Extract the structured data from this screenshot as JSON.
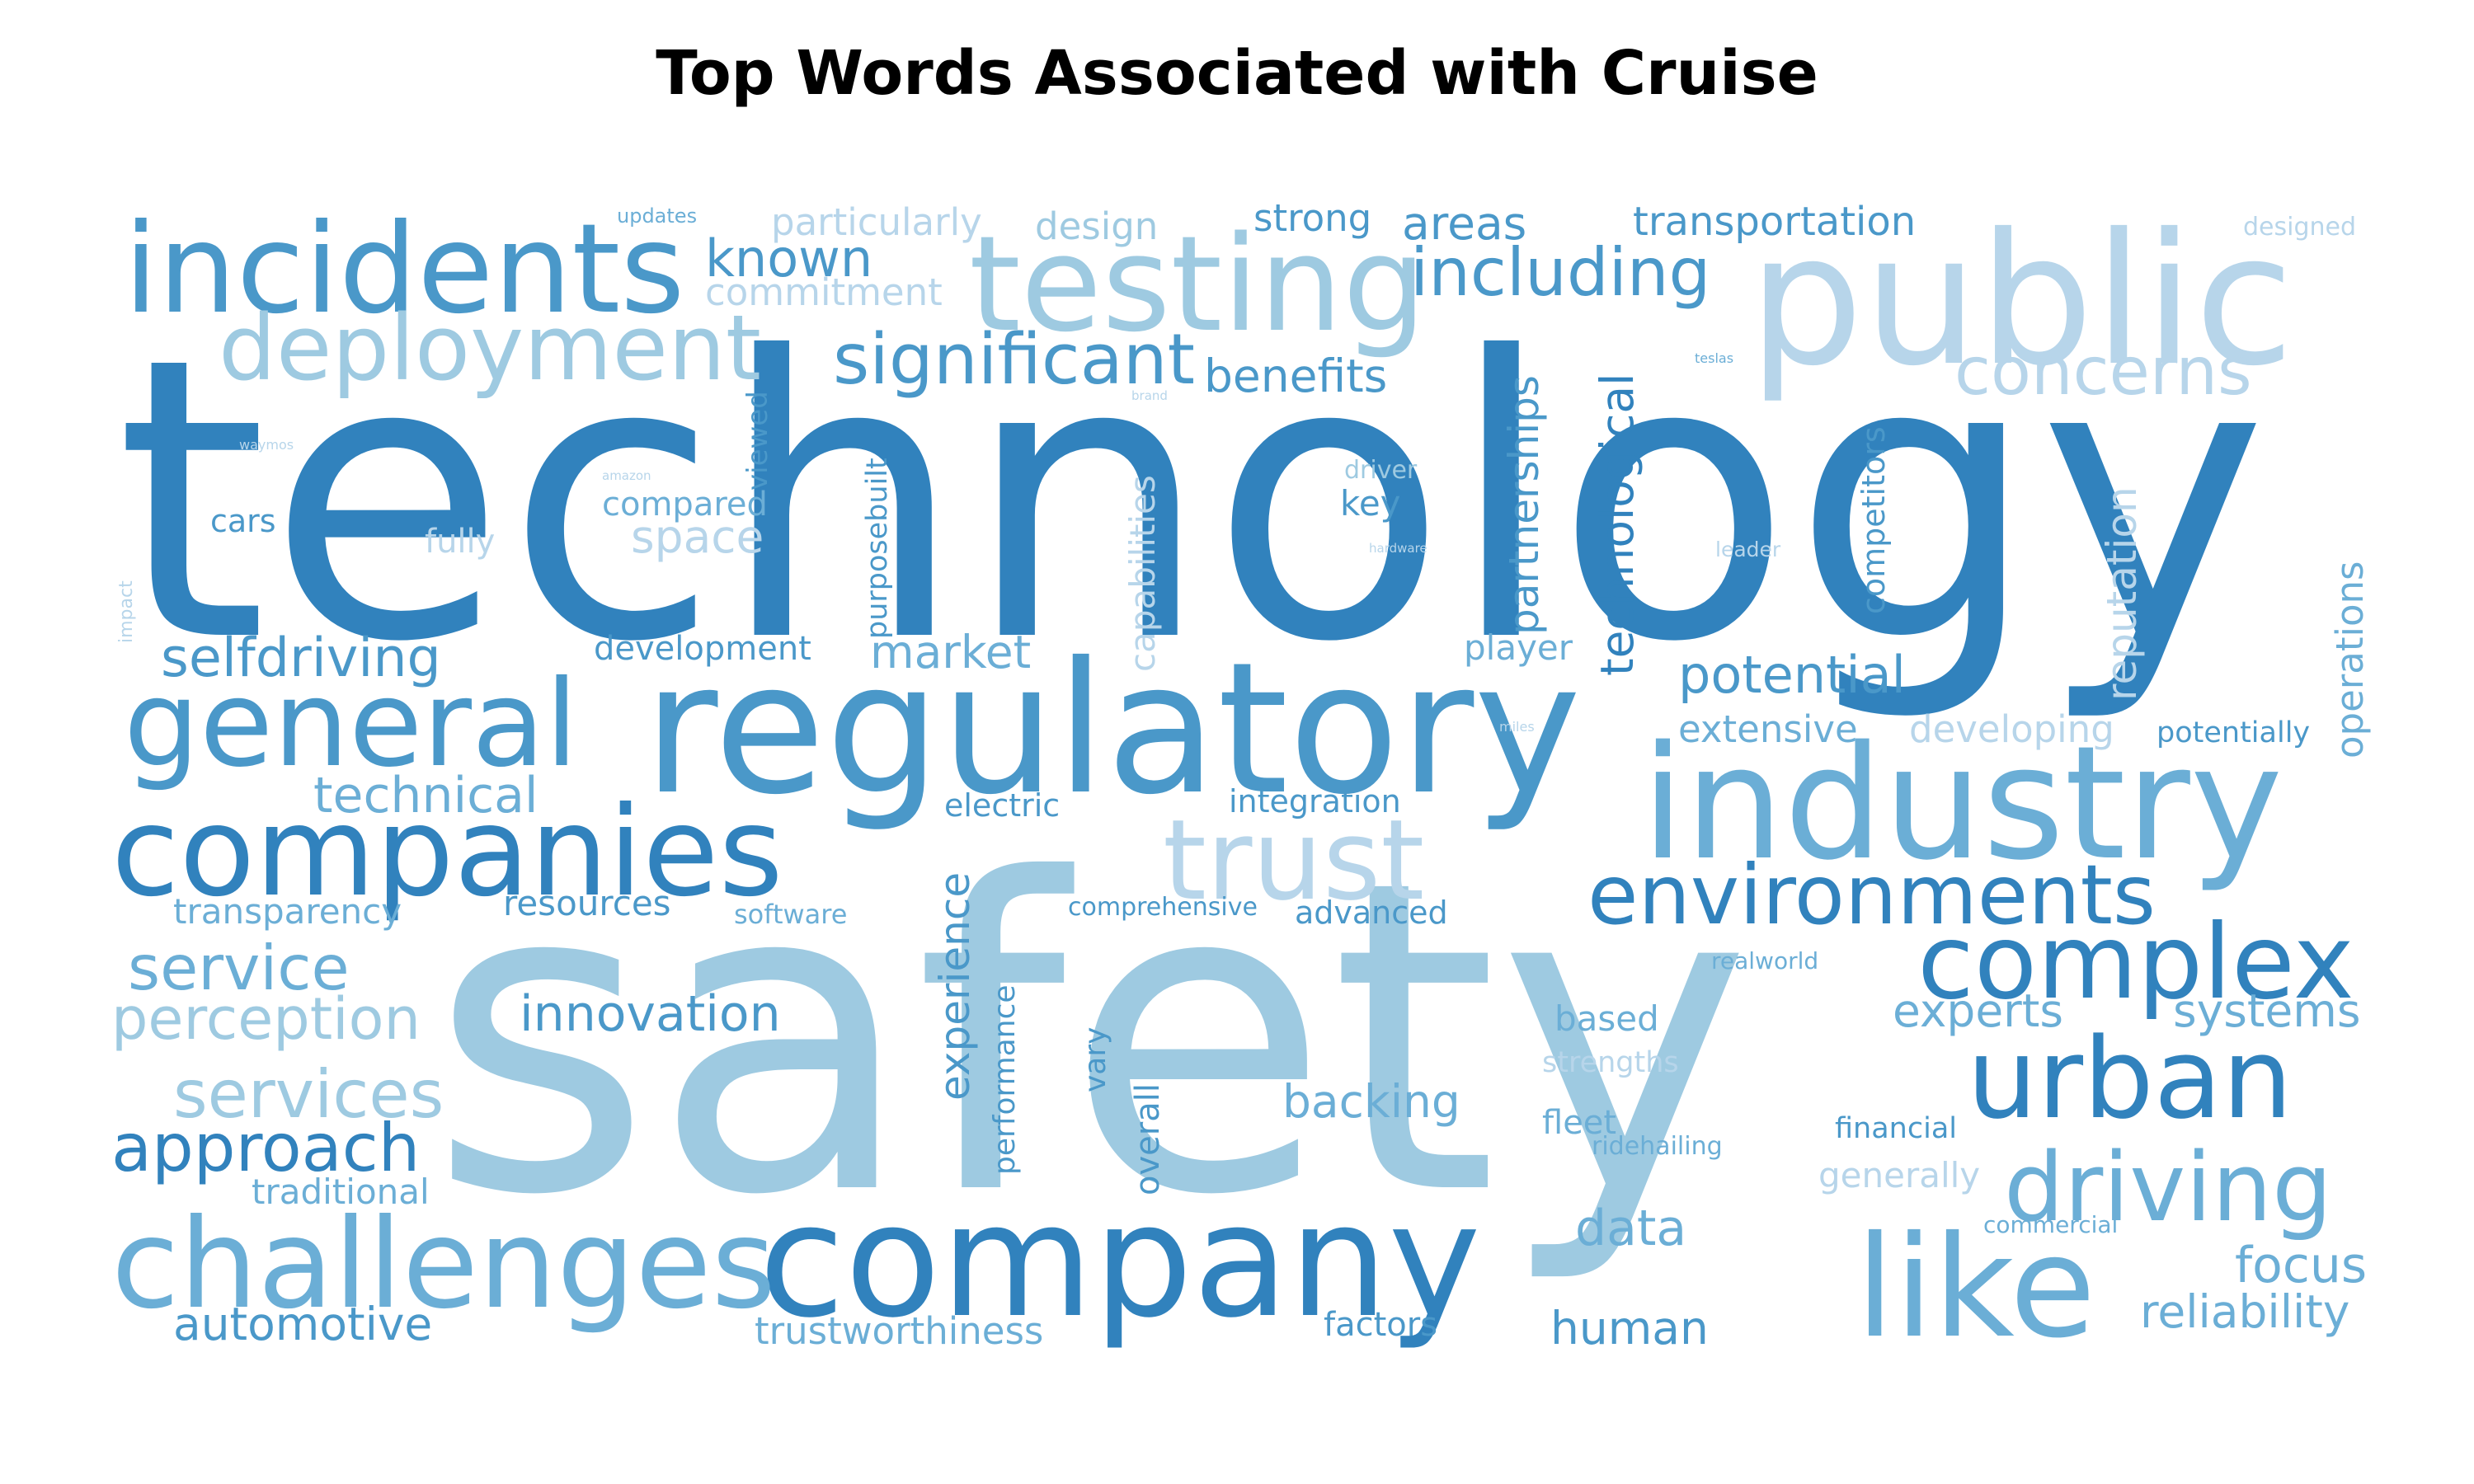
{
  "title": "Top Words Associated with Cruise",
  "palette": {
    "dark": "#3182bd",
    "mid": "#4a98c9",
    "light": "#6baed6",
    "pale": "#9ecae1",
    "faint": "#b7d5ea"
  },
  "words": [
    {
      "text": "technology",
      "tone": "dark"
    },
    {
      "text": "safety",
      "tone": "pale"
    },
    {
      "text": "public",
      "tone": "faint"
    },
    {
      "text": "regulatory",
      "tone": "mid"
    },
    {
      "text": "industry",
      "tone": "light"
    },
    {
      "text": "company",
      "tone": "dark"
    },
    {
      "text": "incidents",
      "tone": "mid"
    },
    {
      "text": "testing",
      "tone": "pale"
    },
    {
      "text": "companies",
      "tone": "dark"
    },
    {
      "text": "general",
      "tone": "mid"
    },
    {
      "text": "challenges",
      "tone": "light"
    },
    {
      "text": "like",
      "tone": "light"
    },
    {
      "text": "urban",
      "tone": "dark"
    },
    {
      "text": "complex",
      "tone": "dark"
    },
    {
      "text": "deployment",
      "tone": "pale"
    },
    {
      "text": "trust",
      "tone": "faint"
    },
    {
      "text": "driving",
      "tone": "light"
    },
    {
      "text": "environments",
      "tone": "dark"
    },
    {
      "text": "significant",
      "tone": "mid"
    },
    {
      "text": "concerns",
      "tone": "faint"
    },
    {
      "text": "including",
      "tone": "mid"
    },
    {
      "text": "approach",
      "tone": "dark"
    },
    {
      "text": "services",
      "tone": "pale"
    },
    {
      "text": "service",
      "tone": "light"
    },
    {
      "text": "perception",
      "tone": "pale"
    },
    {
      "text": "selfdriving",
      "tone": "mid"
    },
    {
      "text": "known",
      "tone": "mid"
    },
    {
      "text": "innovation",
      "tone": "mid"
    },
    {
      "text": "technical",
      "tone": "light"
    },
    {
      "text": "automotive",
      "tone": "mid"
    },
    {
      "text": "backing",
      "tone": "light"
    },
    {
      "text": "potential",
      "tone": "mid"
    },
    {
      "text": "focus",
      "tone": "light"
    },
    {
      "text": "reliability",
      "tone": "light"
    },
    {
      "text": "human",
      "tone": "mid"
    },
    {
      "text": "experts",
      "tone": "light"
    },
    {
      "text": "systems",
      "tone": "light"
    },
    {
      "text": "data",
      "tone": "light"
    },
    {
      "text": "benefits",
      "tone": "mid"
    },
    {
      "text": "areas",
      "tone": "mid"
    },
    {
      "text": "transportation",
      "tone": "mid"
    },
    {
      "text": "market",
      "tone": "light"
    },
    {
      "text": "space",
      "tone": "faint"
    },
    {
      "text": "design",
      "tone": "pale"
    },
    {
      "text": "strong",
      "tone": "mid"
    },
    {
      "text": "particularly",
      "tone": "faint"
    },
    {
      "text": "commitment",
      "tone": "faint"
    },
    {
      "text": "trustworthiness",
      "tone": "light"
    },
    {
      "text": "transparency",
      "tone": "light"
    },
    {
      "text": "resources",
      "tone": "mid"
    },
    {
      "text": "traditional",
      "tone": "light"
    },
    {
      "text": "development",
      "tone": "mid"
    },
    {
      "text": "compared",
      "tone": "light"
    },
    {
      "text": "key",
      "tone": "mid"
    },
    {
      "text": "player",
      "tone": "light"
    },
    {
      "text": "extensive",
      "tone": "light"
    },
    {
      "text": "developing",
      "tone": "faint"
    },
    {
      "text": "potentially",
      "tone": "mid"
    },
    {
      "text": "integration",
      "tone": "mid"
    },
    {
      "text": "advanced",
      "tone": "mid"
    },
    {
      "text": "factors",
      "tone": "mid"
    },
    {
      "text": "electric",
      "tone": "mid"
    },
    {
      "text": "based",
      "tone": "light"
    },
    {
      "text": "fleet",
      "tone": "light"
    },
    {
      "text": "financial",
      "tone": "mid"
    },
    {
      "text": "generally",
      "tone": "faint"
    },
    {
      "text": "cars",
      "tone": "mid"
    },
    {
      "text": "fully",
      "tone": "faint"
    },
    {
      "text": "software",
      "tone": "light"
    },
    {
      "text": "comprehensive",
      "tone": "mid"
    },
    {
      "text": "strengths",
      "tone": "faint"
    },
    {
      "text": "ridehailing",
      "tone": "light"
    },
    {
      "text": "realworld",
      "tone": "light"
    },
    {
      "text": "commercial",
      "tone": "light"
    },
    {
      "text": "driver",
      "tone": "pale"
    },
    {
      "text": "updates",
      "tone": "light"
    },
    {
      "text": "designed",
      "tone": "faint"
    },
    {
      "text": "leader",
      "tone": "faint"
    },
    {
      "text": "teslas",
      "tone": "light"
    },
    {
      "text": "brand",
      "tone": "faint"
    },
    {
      "text": "waymos",
      "tone": "faint"
    },
    {
      "text": "amazon",
      "tone": "faint"
    },
    {
      "text": "hardware",
      "tone": "faint"
    },
    {
      "text": "miles",
      "tone": "faint"
    },
    {
      "text": "partnerships",
      "tone": "mid"
    },
    {
      "text": "technological",
      "tone": "dark"
    },
    {
      "text": "capabilities",
      "tone": "faint"
    },
    {
      "text": "purposebuilt",
      "tone": "mid"
    },
    {
      "text": "viewed",
      "tone": "mid"
    },
    {
      "text": "competitors",
      "tone": "mid"
    },
    {
      "text": "reputation",
      "tone": "faint"
    },
    {
      "text": "operations",
      "tone": "light"
    },
    {
      "text": "experience",
      "tone": "mid"
    },
    {
      "text": "performance",
      "tone": "mid"
    },
    {
      "text": "vary",
      "tone": "mid"
    },
    {
      "text": "overall",
      "tone": "mid"
    },
    {
      "text": "impact",
      "tone": "faint"
    }
  ]
}
